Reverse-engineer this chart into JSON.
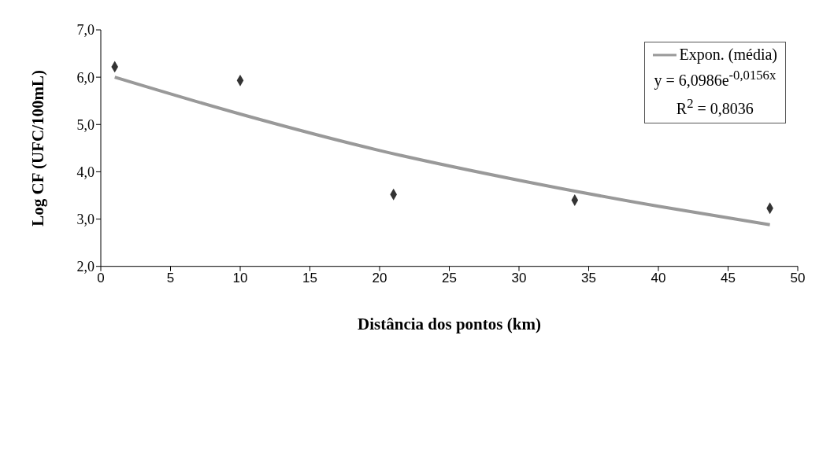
{
  "chart_data": {
    "type": "scatter",
    "xlabel": "Distância dos pontos (km)",
    "ylabel": "Log CF (UFC/100mL)",
    "xlim": [
      0,
      50
    ],
    "xticks": [
      0,
      5,
      10,
      15,
      20,
      25,
      30,
      35,
      40,
      45,
      50
    ],
    "ylim": [
      2,
      7
    ],
    "yticks": [
      {
        "value": 2,
        "label": "2,0"
      },
      {
        "value": 3,
        "label": "3,0"
      },
      {
        "value": 4,
        "label": "4,0"
      },
      {
        "value": 5,
        "label": "5,0"
      },
      {
        "value": 6,
        "label": "6,0"
      },
      {
        "value": 7,
        "label": "7,0"
      }
    ],
    "grid": false,
    "legend": "top right",
    "annotations": [
      "y = 6,0986e$^{-0,0156x}$",
      "R$^{2}$ = 0,8036"
    ],
    "series": [
      {
        "color": "#333333",
        "marker": "diamond",
        "x": [
          1,
          10,
          21,
          34,
          48
        ],
        "values": [
          6.22,
          5.93,
          3.52,
          3.4,
          3.23
        ]
      },
      {
        "type": "line",
        "name": "Expon. (média)",
        "color": "#999999",
        "marker": "none",
        "line_style": "solid",
        "x": [
          1,
          10,
          20,
          30,
          40,
          48
        ],
        "values": [
          6.0,
          5.22,
          4.45,
          3.82,
          3.27,
          2.88
        ]
      }
    ]
  }
}
